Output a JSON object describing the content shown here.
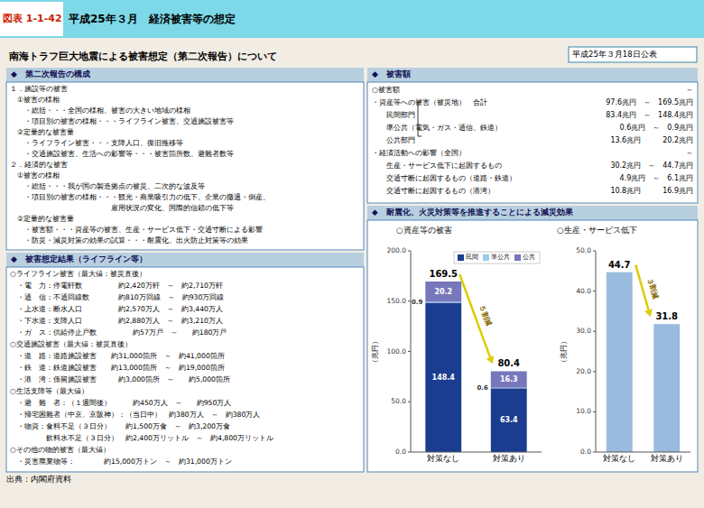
{
  "figure_label": "図表 1-1-42",
  "title": "平成25年３月　経済被害等の想定",
  "subtitle": "南海トラフ巨大地震による被害想定（第二次報告）について",
  "date": "平成25年３月18日公表",
  "left_panel": {
    "section1_title": "◆　第二次報告の構成",
    "section1_lines": [
      "１．施設等の被害",
      "　①被害の様相",
      "　　・総括・・・全国の様相、被害の大きい地域の様相",
      "　　・項目別の被害の様相・・・ライフライン被害、交通施設被害等",
      "　②定量的な被害量",
      "　　・ライフライン被害・・・支障人口、復旧推移等",
      "　　・交通施設被害、生活への影響等・・・被害箇所数、避難者数等",
      "２．経済的な被害",
      "　①被害の様相",
      "　　・総括・・・我が国の製造拠点の被災、二次的な波及等",
      "　　・項目別の被害の様相・・・観光・商業吸引力の低下、企業の撤退・倒産、",
      "　　　　　　　　　　　　　　雇用状況の変化、国際的信頼の低下等",
      "　②定量的な被害量",
      "　　・被害額・・・資産等の被害、生産・サービス低下・交通寸断による影響",
      "　　・防災・減災対策の効果の試算・・・耐震化、出火防止対策等の効果"
    ],
    "section2_title": "◆　被害想定結果（ライフライン等）",
    "section2_lines": [
      "○ライフライン被害（最大値：被災直後）",
      "　・電　力：停電軒数　　　　　約2,420万軒　～　約2,710万軒",
      "　・通　信：不通回線数　　　　約810万回線　～　約930万回線",
      "　・上水道：断水人口　　　　　約2,570万人　～　約3,440万人",
      "　・下水道：支障人口　　　　　約2,880万人　～　約3,210万人",
      "　・ガ　ス：供給停止戸数　　　　　約57万戸　～　　約180万戸",
      "○交通施設被害（最大値：被災直後）",
      "　・道　路：道路施設被害　　約31,000箇所　～　約41,000箇所",
      "　・鉄　道：鉄道施設被害　　約13,000箇所　～　約19,000箇所",
      "　・港　湾：係留施設被害　　　約3,000箇所　～　　約5,000箇所",
      "○生活支障等（最大値）",
      "　・避　難　者：（１週間後）　　　約450万人　～　　約950万人",
      "　・帰宅困難者（中京、京阪神）：（当日中）　約380万人　～　約380万人",
      "　・物資：食料不足（３日分）　　約1,500万食　～　約3,200万食",
      "　　　　　飲料水不足（３日分）　約2,400万リットル　～　約4,800万リットル",
      "○その他の物的被害（最大値）",
      "　・災害廃棄物等：　　　　約15,000万トン　～　約31,000万トン"
    ]
  },
  "right_panel": {
    "section1_title": "◆　被害額",
    "damage_lines": [
      [
        "○被害額",
        "～"
      ],
      [
        "・資産等への被害（被災地）　合計",
        "97.6兆円　～　169.5兆円"
      ],
      [
        "　　民間部門",
        "83.4兆円　～　148.4兆円"
      ],
      [
        "　　準公共（電気・ガス・通信、鉄道）",
        "0.6兆円　～　0.9兆円"
      ],
      [
        "　　公共部門",
        "13.6兆円　　　20.2兆円"
      ],
      [
        "・経済活動への影響（全国）",
        "～"
      ],
      [
        "　　生産・サービス低下に起因するもの",
        "30.2兆円　～　44.7兆円"
      ],
      [
        "　　交通寸断に起因するもの（道路・鉄道）",
        "4.9兆円　～　6.1兆円"
      ],
      [
        "　　交通寸断に起因するもの（港湾）",
        "10.8兆円　　　16.9兆円"
      ]
    ],
    "section2_title": "◆　耐震化、火災対策等を推進することによる減災効果"
  },
  "footer": "出典：内閣府資料",
  "chart_data": [
    {
      "type": "bar",
      "stacked": true,
      "title": "○資産等の被害",
      "ylabel": "（兆円）",
      "categories": [
        "対策なし",
        "対策あり"
      ],
      "series": [
        {
          "name": "民間",
          "color": "#1a3d8f",
          "values": [
            148.4,
            63.4
          ]
        },
        {
          "name": "準公共",
          "color": "#99ccee",
          "values": [
            0.9,
            0.6
          ]
        },
        {
          "name": "公共",
          "color": "#7777bb",
          "values": [
            20.2,
            16.3
          ]
        }
      ],
      "totals": [
        169.5,
        80.4
      ],
      "ylim": [
        0,
        200
      ],
      "yticks": [
        {
          "value": 0,
          "label": "0.0"
        },
        {
          "value": 50,
          "label": "50.0"
        },
        {
          "value": 100,
          "label": "100.0"
        },
        {
          "value": 150,
          "label": "150.0"
        },
        {
          "value": 200,
          "label": "200.0"
        }
      ],
      "grid": false,
      "legend": "upper right",
      "data_labels": true,
      "annotation": "５割減"
    },
    {
      "type": "bar",
      "title": "○生産・サービス低下",
      "ylabel": "（兆円）",
      "categories": [
        "対策なし",
        "対策あり"
      ],
      "values": [
        44.7,
        31.8
      ],
      "color": "#99bbdd",
      "ylim": [
        0,
        50
      ],
      "yticks": [
        {
          "value": 0,
          "label": "0.0"
        },
        {
          "value": 10,
          "label": "10.0"
        },
        {
          "value": 20,
          "label": "20.0"
        },
        {
          "value": 30,
          "label": "30.0"
        },
        {
          "value": 40,
          "label": "40.0"
        },
        {
          "value": 50,
          "label": "50.0"
        }
      ],
      "grid": false,
      "data_labels": true,
      "annotation": "３割減"
    }
  ]
}
